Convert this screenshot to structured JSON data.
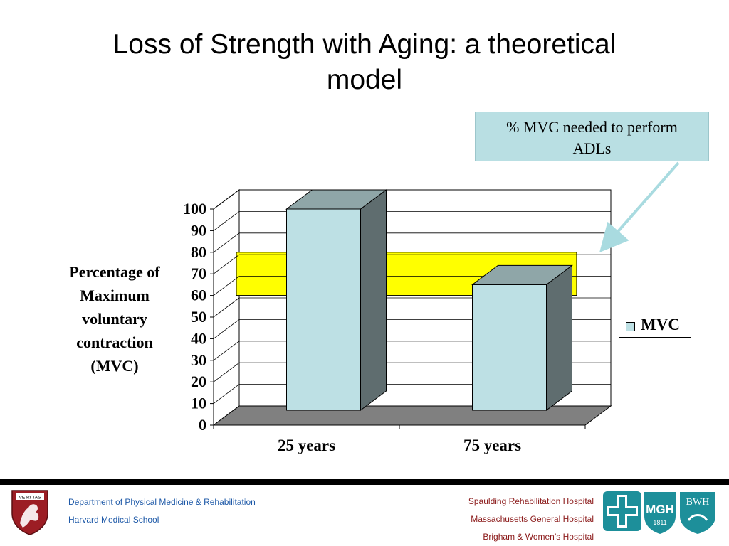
{
  "slide": {
    "title_line1": "Loss of Strength with Aging: a theoretical",
    "title_line2": "model"
  },
  "callout": {
    "line1": "% MVC needed to perform",
    "line2": "ADLs"
  },
  "ylabel": {
    "line1": "Percentage of",
    "line2": "Maximum",
    "line3": "voluntary",
    "line4": "contraction",
    "line5": "(MVC)"
  },
  "chart_data": {
    "type": "bar",
    "categories": [
      "25 years",
      "75 years"
    ],
    "series": [
      {
        "name": "MVC",
        "values": [
          100,
          65
        ]
      }
    ],
    "yticks": [
      0,
      10,
      20,
      30,
      40,
      50,
      60,
      70,
      80,
      90,
      100
    ],
    "ylim": [
      0,
      100
    ],
    "highlight_band": {
      "from": 60,
      "to": 80,
      "color": "#ffff00"
    },
    "legend_position": "right",
    "bar_color": "#bde0e4",
    "bar_side_color": "#5f6d6f",
    "bar_top_color": "#8fa6a8",
    "floor_color": "#808080",
    "grid": true
  },
  "footer": {
    "dept": "Department of Physical Medicine & Rehabilitation",
    "school": "Harvard Medical School",
    "hospital1": "Spaulding Rehabilitation Hospital",
    "hospital2": "Massachusetts General Hospital",
    "hospital3": "Brigham & Women’s Hospital",
    "logo_mgh": "MGH",
    "logo_mgh_year": "1811",
    "logo_bwh": "BWH",
    "shield_text": "VE RI TAS"
  }
}
